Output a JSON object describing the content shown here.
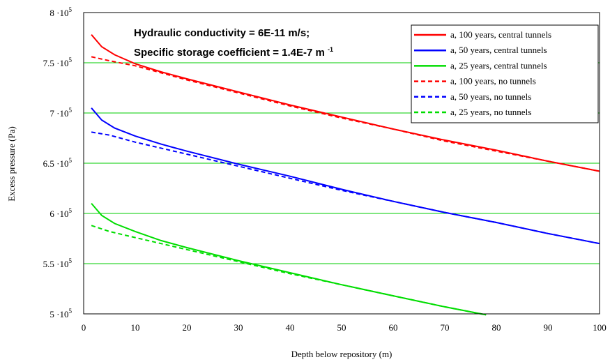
{
  "chart_data": {
    "type": "line",
    "xlabel": "Depth below repository (m)",
    "ylabel": "Excess pressure (Pa)",
    "xlim": [
      0,
      100
    ],
    "ylim": [
      500000,
      800000
    ],
    "x_ticks": [
      0,
      10,
      20,
      30,
      40,
      50,
      60,
      70,
      80,
      90,
      100
    ],
    "y_ticks": [
      {
        "value": 500000,
        "label": "5 ·10",
        "exp": "5"
      },
      {
        "value": 550000,
        "label": "5.5 ·10",
        "exp": "5"
      },
      {
        "value": 600000,
        "label": "6 ·10",
        "exp": "5"
      },
      {
        "value": 650000,
        "label": "6.5 ·10",
        "exp": "5"
      },
      {
        "value": 700000,
        "label": "7 ·10",
        "exp": "5"
      },
      {
        "value": 750000,
        "label": "7.5 ·10",
        "exp": "5"
      },
      {
        "value": 800000,
        "label": "8 ·10",
        "exp": "5"
      }
    ],
    "grid": "horizontal",
    "grid_color": "#00cc00",
    "annotations": [
      "Hydraulic conductivity = 6E-11 m/s;",
      "Specific storage coefficient = 1.4E-7 m"
    ],
    "annotation_sup": "-1",
    "legend_position": "top-right",
    "series": [
      {
        "name": "a, 100 years, central  tunnels",
        "color": "#ff0000",
        "dash": false,
        "x": [
          1.5,
          3.5,
          6,
          10,
          15,
          20,
          30,
          40,
          50,
          60,
          70,
          80,
          90,
          100
        ],
        "y": [
          778000,
          766000,
          758000,
          749000,
          741000,
          734000,
          721000,
          708000,
          696000,
          684000,
          673000,
          663000,
          652000,
          642000
        ]
      },
      {
        "name": "a, 50 years, central tunnels",
        "color": "#0000ff",
        "dash": false,
        "x": [
          1.5,
          3.5,
          6,
          10,
          15,
          20,
          30,
          40,
          50,
          60,
          70,
          80,
          90,
          100
        ],
        "y": [
          705000,
          693000,
          685000,
          677000,
          669000,
          662000,
          649000,
          637000,
          624000,
          612000,
          601000,
          591000,
          580000,
          570000
        ]
      },
      {
        "name": "a, 25 years, central tunnels",
        "color": "#00dd00",
        "dash": false,
        "x": [
          1.5,
          3.5,
          6,
          10,
          15,
          20,
          30,
          40,
          50,
          60,
          70,
          78
        ],
        "y": [
          610000,
          598000,
          590000,
          582000,
          573000,
          566000,
          553000,
          541000,
          529000,
          518000,
          507000,
          499000
        ]
      },
      {
        "name": "a, 100 years, no tunnels",
        "color": "#ff0000",
        "dash": true,
        "x": [
          1.5,
          5,
          10,
          20,
          30,
          40,
          50,
          60,
          70,
          80,
          90,
          100
        ],
        "y": [
          756000,
          752000,
          747000,
          733000,
          720000,
          707000,
          695000,
          684000,
          672000,
          662000,
          652000,
          642000
        ]
      },
      {
        "name": "a, 50 years, no tunnels",
        "color": "#0000ff",
        "dash": true,
        "x": [
          1.5,
          5,
          10,
          20,
          30,
          40,
          50,
          60,
          70,
          80,
          90,
          100
        ],
        "y": [
          681000,
          678000,
          671000,
          659000,
          647000,
          635000,
          623000,
          612000,
          601000,
          591000,
          580000,
          570000
        ]
      },
      {
        "name": "a, 25 years, no tunnels",
        "color": "#00dd00",
        "dash": true,
        "x": [
          1.5,
          5,
          10,
          20,
          30,
          40,
          50,
          60,
          70,
          78
        ],
        "y": [
          588000,
          582000,
          576000,
          564000,
          552000,
          540000,
          529000,
          518000,
          507000,
          499000
        ]
      }
    ]
  }
}
